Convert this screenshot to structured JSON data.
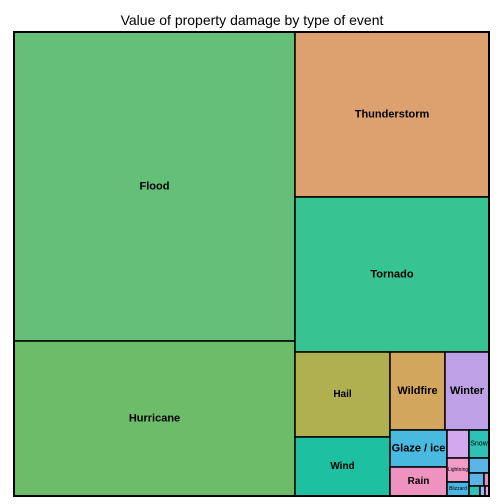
{
  "chart_data": {
    "type": "treemap",
    "title": "Value of property damage by type of event",
    "tiles": [
      {
        "label": "Flood",
        "color": "#66BF79"
      },
      {
        "label": "Hurricane",
        "color": "#6DBC6A"
      },
      {
        "label": "Thunderstorm",
        "color": "#DDA16F"
      },
      {
        "label": "Tornado",
        "color": "#38C393"
      },
      {
        "label": "Hail",
        "color": "#B1B050"
      },
      {
        "label": "Wildfire",
        "color": "#D3A65E"
      },
      {
        "label": "Winter",
        "color": "#BEA0E6"
      },
      {
        "label": "Wind",
        "color": "#1DC1A2"
      },
      {
        "label": "Glaze / ice",
        "color": "#49B9DF"
      },
      {
        "label": "Rain",
        "color": "#EE92C0"
      },
      {
        "label": "",
        "color": "#D4A8EE"
      },
      {
        "label": "Snow",
        "color": "#2FC0B6"
      },
      {
        "label": "Lightning",
        "color": "#F29AC8"
      },
      {
        "label": "",
        "color": "#5AB5E6"
      },
      {
        "label": "",
        "color": "#5AB5E6"
      },
      {
        "label": "Blizzard",
        "color": "#4BB6E3"
      },
      {
        "label": "",
        "color": "#E38FC3"
      },
      {
        "label": "",
        "color": "#2FC0B6"
      },
      {
        "label": "",
        "color": "#9FB6F0"
      },
      {
        "label": "",
        "color": "#E9A9D4"
      }
    ]
  }
}
